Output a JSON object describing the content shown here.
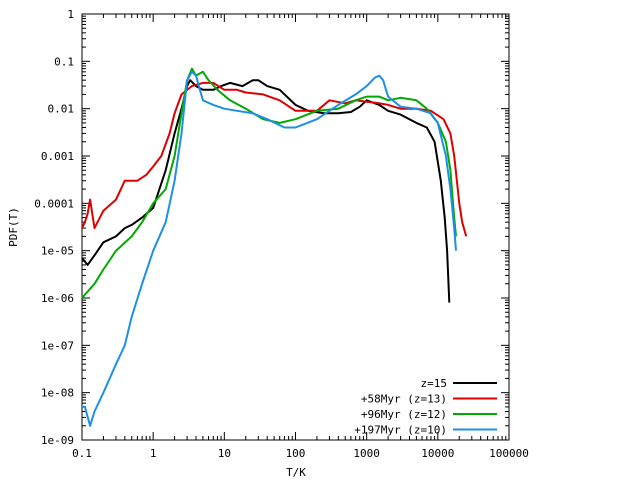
{
  "chart_data": {
    "type": "line",
    "xlabel": "T/K",
    "ylabel": "PDF(T)",
    "xscale": "log",
    "yscale": "log",
    "xlim": [
      0.1,
      100000
    ],
    "ylim": [
      1e-09,
      1
    ],
    "xticks": [
      {
        "v": 0.1,
        "label": "0.1"
      },
      {
        "v": 1,
        "label": "1"
      },
      {
        "v": 10,
        "label": "10"
      },
      {
        "v": 100,
        "label": "100"
      },
      {
        "v": 1000,
        "label": "1000"
      },
      {
        "v": 10000,
        "label": "10000"
      },
      {
        "v": 100000,
        "label": "100000"
      }
    ],
    "yticks": [
      {
        "v": 1e-09,
        "label": "1e-09"
      },
      {
        "v": 1e-08,
        "label": "1e-08"
      },
      {
        "v": 1e-07,
        "label": "1e-07"
      },
      {
        "v": 1e-06,
        "label": "1e-06"
      },
      {
        "v": 1e-05,
        "label": "1e-05"
      },
      {
        "v": 0.0001,
        "label": "0.0001"
      },
      {
        "v": 0.001,
        "label": "0.001"
      },
      {
        "v": 0.01,
        "label": "0.01"
      },
      {
        "v": 0.1,
        "label": "0.1"
      },
      {
        "v": 1,
        "label": "1"
      }
    ],
    "grid": false,
    "legend_position": "bottom-right",
    "series": [
      {
        "name": "z=15",
        "color": "#000000",
        "points": [
          [
            0.1,
            7e-06
          ],
          [
            0.12,
            5e-06
          ],
          [
            0.15,
            8e-06
          ],
          [
            0.2,
            1.5e-05
          ],
          [
            0.3,
            2e-05
          ],
          [
            0.4,
            3e-05
          ],
          [
            0.5,
            3.5e-05
          ],
          [
            0.7,
            5e-05
          ],
          [
            1.0,
            8e-05
          ],
          [
            1.5,
            0.0005
          ],
          [
            2.0,
            0.003
          ],
          [
            2.5,
            0.01
          ],
          [
            3.0,
            0.03
          ],
          [
            3.3,
            0.04
          ],
          [
            4,
            0.03
          ],
          [
            5,
            0.025
          ],
          [
            7,
            0.025
          ],
          [
            9,
            0.03
          ],
          [
            12,
            0.035
          ],
          [
            18,
            0.03
          ],
          [
            25,
            0.04
          ],
          [
            30,
            0.04
          ],
          [
            40,
            0.03
          ],
          [
            60,
            0.025
          ],
          [
            100,
            0.012
          ],
          [
            150,
            0.009
          ],
          [
            250,
            0.008
          ],
          [
            400,
            0.008
          ],
          [
            600,
            0.0085
          ],
          [
            800,
            0.011
          ],
          [
            1000,
            0.015
          ],
          [
            1500,
            0.012
          ],
          [
            2000,
            0.009
          ],
          [
            3000,
            0.0075
          ],
          [
            5000,
            0.005
          ],
          [
            7000,
            0.004
          ],
          [
            9000,
            0.002
          ],
          [
            11000,
            0.0003
          ],
          [
            12500,
            5e-05
          ],
          [
            13500,
            1e-05
          ],
          [
            14500,
            8e-07
          ]
        ]
      },
      {
        "name": "+58Myr (z=13)",
        "color": "#dd0000",
        "points": [
          [
            0.1,
            3e-05
          ],
          [
            0.11,
            4e-05
          ],
          [
            0.12,
            6e-05
          ],
          [
            0.13,
            0.00012
          ],
          [
            0.15,
            3e-05
          ],
          [
            0.2,
            7e-05
          ],
          [
            0.3,
            0.00012
          ],
          [
            0.4,
            0.0003
          ],
          [
            0.6,
            0.0003
          ],
          [
            0.8,
            0.0004
          ],
          [
            1.0,
            0.0006
          ],
          [
            1.3,
            0.001
          ],
          [
            1.7,
            0.003
          ],
          [
            2.0,
            0.008
          ],
          [
            2.5,
            0.02
          ],
          [
            3.5,
            0.03
          ],
          [
            5,
            0.035
          ],
          [
            7,
            0.035
          ],
          [
            10,
            0.025
          ],
          [
            15,
            0.025
          ],
          [
            20,
            0.022
          ],
          [
            35,
            0.02
          ],
          [
            60,
            0.015
          ],
          [
            100,
            0.009
          ],
          [
            200,
            0.009
          ],
          [
            300,
            0.015
          ],
          [
            500,
            0.013
          ],
          [
            700,
            0.015
          ],
          [
            1000,
            0.014
          ],
          [
            1500,
            0.013
          ],
          [
            2000,
            0.012
          ],
          [
            3000,
            0.01
          ],
          [
            5000,
            0.01
          ],
          [
            8000,
            0.009
          ],
          [
            12000,
            0.006
          ],
          [
            15000,
            0.003
          ],
          [
            17000,
            0.001
          ],
          [
            20000,
            0.0001
          ],
          [
            22000,
            4e-05
          ],
          [
            25000,
            2e-05
          ]
        ]
      },
      {
        "name": "+96Myr (z=12)",
        "color": "#00aa00",
        "points": [
          [
            0.1,
            1e-06
          ],
          [
            0.15,
            2e-06
          ],
          [
            0.2,
            4e-06
          ],
          [
            0.3,
            1e-05
          ],
          [
            0.5,
            2e-05
          ],
          [
            0.7,
            4e-05
          ],
          [
            1.0,
            0.0001
          ],
          [
            1.5,
            0.0002
          ],
          [
            2.0,
            0.001
          ],
          [
            2.5,
            0.008
          ],
          [
            3.0,
            0.04
          ],
          [
            3.5,
            0.07
          ],
          [
            4.0,
            0.05
          ],
          [
            5.0,
            0.06
          ],
          [
            6.0,
            0.04
          ],
          [
            8.0,
            0.025
          ],
          [
            12,
            0.015
          ],
          [
            20,
            0.01
          ],
          [
            35,
            0.006
          ],
          [
            60,
            0.005
          ],
          [
            100,
            0.006
          ],
          [
            200,
            0.009
          ],
          [
            400,
            0.01
          ],
          [
            700,
            0.015
          ],
          [
            1000,
            0.018
          ],
          [
            1500,
            0.018
          ],
          [
            2000,
            0.015
          ],
          [
            3000,
            0.017
          ],
          [
            5000,
            0.015
          ],
          [
            7000,
            0.01
          ],
          [
            10000,
            0.005
          ],
          [
            13000,
            0.002
          ],
          [
            15000,
            0.0005
          ],
          [
            17000,
            5e-05
          ],
          [
            18000,
            2e-05
          ]
        ]
      },
      {
        "name": "+197Myr (z=10)",
        "color": "#1e8fe6",
        "points": [
          [
            0.1,
            5e-09
          ],
          [
            0.11,
            5e-09
          ],
          [
            0.13,
            2e-09
          ],
          [
            0.15,
            4e-09
          ],
          [
            0.2,
            1e-08
          ],
          [
            0.3,
            4e-08
          ],
          [
            0.4,
            1e-07
          ],
          [
            0.5,
            4e-07
          ],
          [
            0.7,
            2e-06
          ],
          [
            1.0,
            1e-05
          ],
          [
            1.5,
            4e-05
          ],
          [
            2.0,
            0.0003
          ],
          [
            2.5,
            0.003
          ],
          [
            3.0,
            0.04
          ],
          [
            3.5,
            0.06
          ],
          [
            4.0,
            0.05
          ],
          [
            5,
            0.015
          ],
          [
            7,
            0.012
          ],
          [
            10,
            0.01
          ],
          [
            15,
            0.009
          ],
          [
            25,
            0.008
          ],
          [
            40,
            0.006
          ],
          [
            70,
            0.004
          ],
          [
            100,
            0.004
          ],
          [
            200,
            0.006
          ],
          [
            400,
            0.012
          ],
          [
            700,
            0.02
          ],
          [
            1000,
            0.03
          ],
          [
            1300,
            0.045
          ],
          [
            1500,
            0.05
          ],
          [
            1700,
            0.04
          ],
          [
            2000,
            0.018
          ],
          [
            3000,
            0.011
          ],
          [
            5000,
            0.01
          ],
          [
            8000,
            0.008
          ],
          [
            10000,
            0.005
          ],
          [
            13000,
            0.001
          ],
          [
            15000,
            0.0002
          ],
          [
            17000,
            3e-05
          ],
          [
            18000,
            1e-05
          ]
        ]
      }
    ]
  }
}
